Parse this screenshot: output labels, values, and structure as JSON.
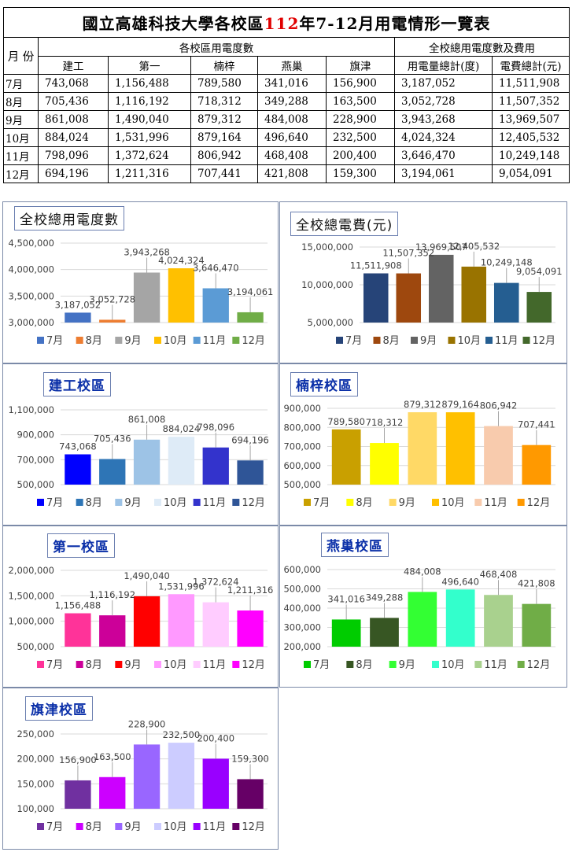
{
  "table": {
    "title_prefix": "國立高雄科技大學各校區",
    "title_year": "112",
    "title_suffix": "年7-12月用電情形一覽表",
    "month_header": "月 份",
    "campus_group_header": "各校區用電度數",
    "total_group_header": "全校總用電度數及費用",
    "campus_headers": [
      "建工",
      "第一",
      "楠梓",
      "燕巢",
      "旗津"
    ],
    "total_headers": [
      "用電量總計(度)",
      "電費總計(元)"
    ],
    "rows": [
      {
        "month": "7月",
        "cells": [
          "743,068",
          "1,156,488",
          "789,580",
          "341,016",
          "156,900",
          "3,187,052",
          "11,511,908"
        ]
      },
      {
        "month": "8月",
        "cells": [
          "705,436",
          "1,116,192",
          "718,312",
          "349,288",
          "163,500",
          "3,052,728",
          "11,507,352"
        ]
      },
      {
        "month": "9月",
        "cells": [
          "861,008",
          "1,490,040",
          "879,312",
          "484,008",
          "228,900",
          "3,943,268",
          "13,969,507"
        ]
      },
      {
        "month": "10月",
        "cells": [
          "884,024",
          "1,531,996",
          "879,164",
          "496,640",
          "232,500",
          "4,024,324",
          "12,405,532"
        ]
      },
      {
        "month": "11月",
        "cells": [
          "798,096",
          "1,372,624",
          "806,942",
          "468,408",
          "200,400",
          "3,646,470",
          "10,249,148"
        ]
      },
      {
        "month": "12月",
        "cells": [
          "694,196",
          "1,211,316",
          "707,441",
          "421,808",
          "159,300",
          "3,194,061",
          "9,054,091"
        ]
      }
    ]
  },
  "chart_data": [
    {
      "id": "total-kwh",
      "type": "bar",
      "title": "全校總用電度數",
      "title_style": "dark",
      "categories": [
        "7月",
        "8月",
        "9月",
        "10月",
        "11月",
        "12月"
      ],
      "values": [
        3187052,
        3052728,
        3943268,
        4024324,
        3646470,
        3194061
      ],
      "labels": [
        "3,187,052",
        "3,052,728",
        "3,943,268",
        "4,024,324",
        "3,646,470",
        "3,194,061"
      ],
      "colors": [
        "#4472c4",
        "#ed7d31",
        "#a5a5a5",
        "#ffc000",
        "#5b9bd5",
        "#70ad47"
      ],
      "ylim": [
        3000000,
        4500000
      ],
      "yticks": [
        "3,000,000",
        "3,500,000",
        "4,000,000",
        "4,500,000"
      ],
      "grid": true,
      "legend": "bottom"
    },
    {
      "id": "total-cost",
      "type": "bar",
      "title": "全校總電費(元)",
      "title_style": "dark",
      "categories": [
        "7月",
        "8月",
        "9月",
        "10月",
        "11月",
        "12月"
      ],
      "values": [
        11511908,
        11507352,
        13969507,
        12405532,
        10249148,
        9054091
      ],
      "labels": [
        "11,511,908",
        "11,507,352",
        "13,969,507",
        "12,405,532",
        "10,249,148",
        "9,054,091"
      ],
      "colors": [
        "#264478",
        "#9e480e",
        "#636363",
        "#997300",
        "#255e91",
        "#43682b"
      ],
      "ylim": [
        5000000,
        15000000
      ],
      "yticks": [
        "5,000,000",
        "10,000,000",
        "15,000,000"
      ],
      "grid": true,
      "legend": "bottom"
    },
    {
      "id": "jiangong",
      "type": "bar",
      "title": "建工校區",
      "title_style": "blue",
      "categories": [
        "7月",
        "8月",
        "9月",
        "10月",
        "11月",
        "12月"
      ],
      "values": [
        743068,
        705436,
        861008,
        884024,
        798096,
        694196
      ],
      "labels": [
        "743,068",
        "705,436",
        "861,008",
        "884,024",
        "798,096",
        "694,196"
      ],
      "colors": [
        "#0000ff",
        "#2e75b6",
        "#9dc3e6",
        "#deebf7",
        "#3333cc",
        "#2f5597"
      ],
      "ylim": [
        500000,
        1100000
      ],
      "yticks": [
        "500,000",
        "700,000",
        "900,000",
        "1,100,000"
      ],
      "grid": true,
      "legend": "bottom"
    },
    {
      "id": "nanzi",
      "type": "bar",
      "title": "楠梓校區",
      "title_style": "blue",
      "categories": [
        "7月",
        "8月",
        "9月",
        "10月",
        "11月",
        "12月"
      ],
      "values": [
        789580,
        718312,
        879312,
        879164,
        806942,
        707441
      ],
      "labels": [
        "789,580",
        "718,312",
        "879,312",
        "879,164",
        "806,942",
        "707,441"
      ],
      "colors": [
        "#c9a000",
        "#ffff00",
        "#ffd966",
        "#ffc000",
        "#f8cbad",
        "#ff9900"
      ],
      "ylim": [
        500000,
        900000
      ],
      "yticks": [
        "500,000",
        "600,000",
        "700,000",
        "800,000",
        "900,000"
      ],
      "grid": true,
      "legend": "bottom"
    },
    {
      "id": "diyi",
      "type": "bar",
      "title": "第一校區",
      "title_style": "blue",
      "categories": [
        "7月",
        "8月",
        "9月",
        "10月",
        "11月",
        "12月"
      ],
      "values": [
        1156488,
        1116192,
        1490040,
        1531996,
        1372624,
        1211316
      ],
      "labels": [
        "1,156,488",
        "1,116,192",
        "1,490,040",
        "1,531,996",
        "1,372,624",
        "1,211,316"
      ],
      "colors": [
        "#ff3399",
        "#cc0099",
        "#ff0000",
        "#ff99ff",
        "#ffccff",
        "#ff00ff"
      ],
      "ylim": [
        500000,
        2000000
      ],
      "yticks": [
        "500,000",
        "1,000,000",
        "1,500,000",
        "2,000,000"
      ],
      "grid": true,
      "legend": "bottom"
    },
    {
      "id": "yanchao",
      "type": "bar",
      "title": "燕巢校區",
      "title_style": "blue",
      "categories": [
        "7月",
        "8月",
        "9月",
        "10月",
        "11月",
        "12月"
      ],
      "values": [
        341016,
        349288,
        484008,
        496640,
        468408,
        421808
      ],
      "labels": [
        "341,016",
        "349,288",
        "484,008",
        "496,640",
        "468,408",
        "421,808"
      ],
      "colors": [
        "#00cc00",
        "#375623",
        "#33ff33",
        "#33ffcc",
        "#a9d18e",
        "#70ad47"
      ],
      "ylim": [
        200000,
        600000
      ],
      "yticks": [
        "200,000",
        "300,000",
        "400,000",
        "500,000",
        "600,000"
      ],
      "grid": true,
      "legend": "bottom"
    },
    {
      "id": "qijin",
      "type": "bar",
      "title": "旗津校區",
      "title_style": "blue",
      "categories": [
        "7月",
        "8月",
        "9月",
        "10月",
        "11月",
        "12月"
      ],
      "values": [
        156900,
        163500,
        228900,
        232500,
        200400,
        159300
      ],
      "labels": [
        "156,900",
        "163,500",
        "228,900",
        "232,500",
        "200,400",
        "159,300"
      ],
      "colors": [
        "#7030a0",
        "#cc00ff",
        "#9966ff",
        "#ccccff",
        "#9900ff",
        "#660066"
      ],
      "ylim": [
        100000,
        250000
      ],
      "yticks": [
        "100,000",
        "150,000",
        "200,000",
        "250,000"
      ],
      "grid": true,
      "legend": "bottom"
    }
  ]
}
